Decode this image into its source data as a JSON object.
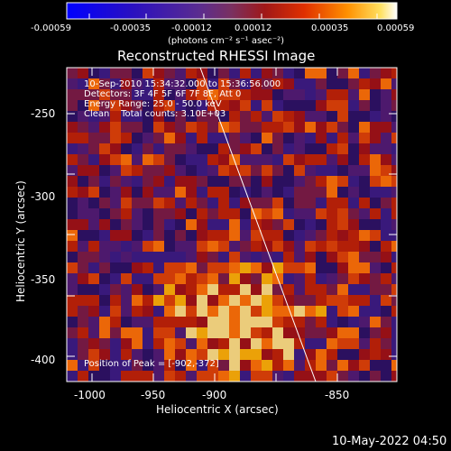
{
  "colorbar": {
    "ticks": [
      "-0.00059",
      "-0.00035",
      "-0.00012",
      "0.00012",
      "0.00035",
      "0.00059"
    ],
    "units_line": "(photons cm⁻² s⁻¹ asec⁻²)",
    "colors": [
      "#0000ff",
      "#1a0fd0",
      "#4a2aa0",
      "#6a3a80",
      "#7a3a6a",
      "#8a2030",
      "#b01010",
      "#e03000",
      "#ff7a00",
      "#ffd000",
      "#ffffff"
    ]
  },
  "plot": {
    "title": "Reconstructed RHESSI Image",
    "info": {
      "time_range": "10-Sep-2010 15:34:32.000 to 15:36:56.000",
      "detectors": "Detectors: 3F 4F 5F 6F 7F 8F, Att 0",
      "energy": "Energy Range: 25.0 - 50.0 keV",
      "clean": "Clean    Total counts: 3.10E+03"
    },
    "peak_text": "Position of Peak = [-902,-372]",
    "xlabel": "Heliocentric X (arcsec)",
    "ylabel": "Heliocentric Y (arcsec)",
    "xticks": [
      "-1000",
      "-950",
      "-900",
      "-850"
    ],
    "yticks": [
      "-250",
      "-300",
      "-350",
      "-400"
    ]
  },
  "footer": {
    "date": "10-May-2022 04:50"
  }
}
